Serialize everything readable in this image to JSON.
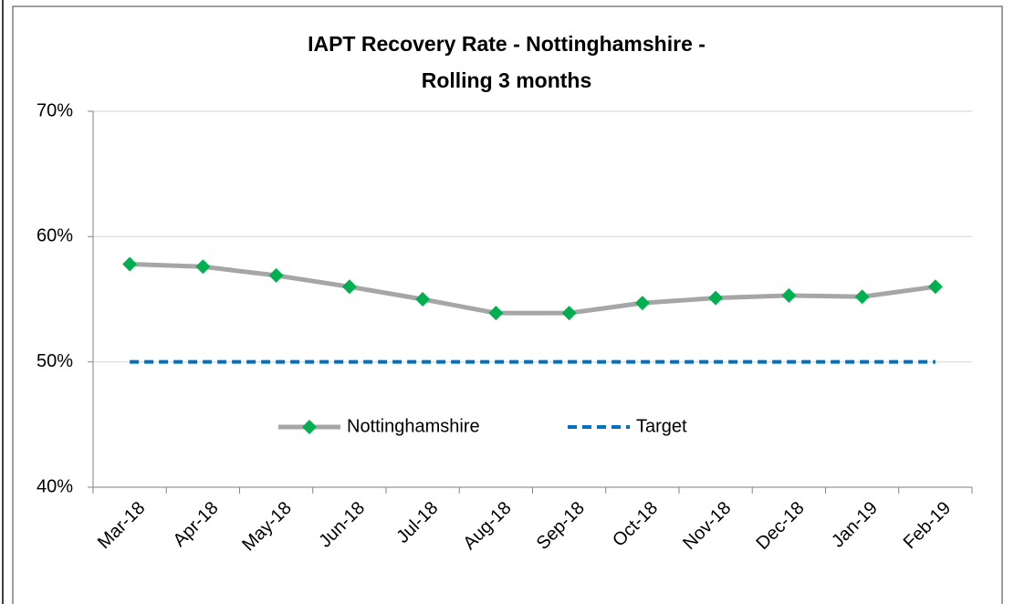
{
  "chart_data": {
    "type": "line",
    "title": [
      "IAPT Recovery Rate - Nottinghamshire  -",
      "Rolling 3 months"
    ],
    "categories": [
      "Mar-18",
      "Apr-18",
      "May-18",
      "Jun-18",
      "Jul-18",
      "Aug-18",
      "Sep-18",
      "Oct-18",
      "Nov-18",
      "Dec-18",
      "Jan-19",
      "Feb-19"
    ],
    "series": [
      {
        "name": "Nottinghamshire",
        "color": "#a6a6a6",
        "marker_color": "#00b050",
        "marker": "diamond",
        "dash": false,
        "values": [
          57.8,
          57.6,
          56.9,
          56.0,
          55.0,
          53.9,
          53.9,
          54.7,
          55.1,
          55.3,
          55.2,
          56.0
        ]
      },
      {
        "name": "Target",
        "color": "#0070c0",
        "marker": "none",
        "dash": true,
        "values": [
          50,
          50,
          50,
          50,
          50,
          50,
          50,
          50,
          50,
          50,
          50,
          50
        ]
      }
    ],
    "ylim": [
      40,
      70
    ],
    "yticks": [
      {
        "value": 40,
        "label": "40%"
      },
      {
        "value": 50,
        "label": "50%"
      },
      {
        "value": 60,
        "label": "60%"
      },
      {
        "value": 70,
        "label": "70%"
      }
    ],
    "grid": true,
    "legend": "center"
  }
}
